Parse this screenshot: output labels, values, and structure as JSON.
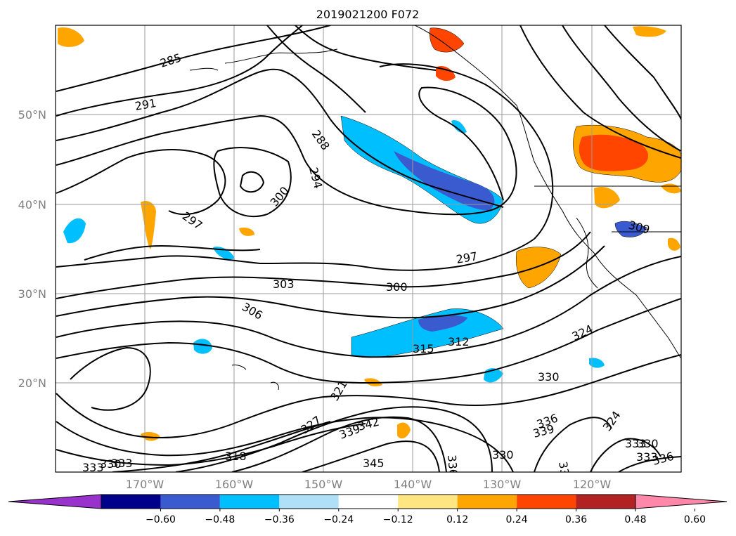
{
  "title": "2019021200 F072",
  "lat_labels": [
    "50°N",
    "40°N",
    "30°N",
    "20°N"
  ],
  "lon_labels": [
    "170°W",
    "160°W",
    "150°W",
    "140°W",
    "130°W",
    "120°W"
  ],
  "contour_labels": [
    "285",
    "291",
    "288",
    "294",
    "297",
    "300",
    "297",
    "300",
    "303",
    "306",
    "309",
    "315",
    "312",
    "324",
    "330",
    "321",
    "327",
    "339",
    "342",
    "336",
    "339",
    "345",
    "336",
    "330",
    "333",
    "330",
    "333",
    "336",
    "324",
    "339",
    "318",
    "330",
    "333",
    "333"
  ],
  "colorbar": {
    "ticks": [
      "−0.60",
      "−0.48",
      "−0.36",
      "−0.24",
      "−0.12",
      "0.12",
      "0.24",
      "0.36",
      "0.48",
      "0.60"
    ],
    "colors": [
      "#9932cc",
      "#00008b",
      "#3a5bd0",
      "#00bfff",
      "#b0e0f8",
      "#ffffff",
      "#ffe680",
      "#ffa500",
      "#ff4500",
      "#b22222",
      "#ff88aa"
    ]
  }
}
